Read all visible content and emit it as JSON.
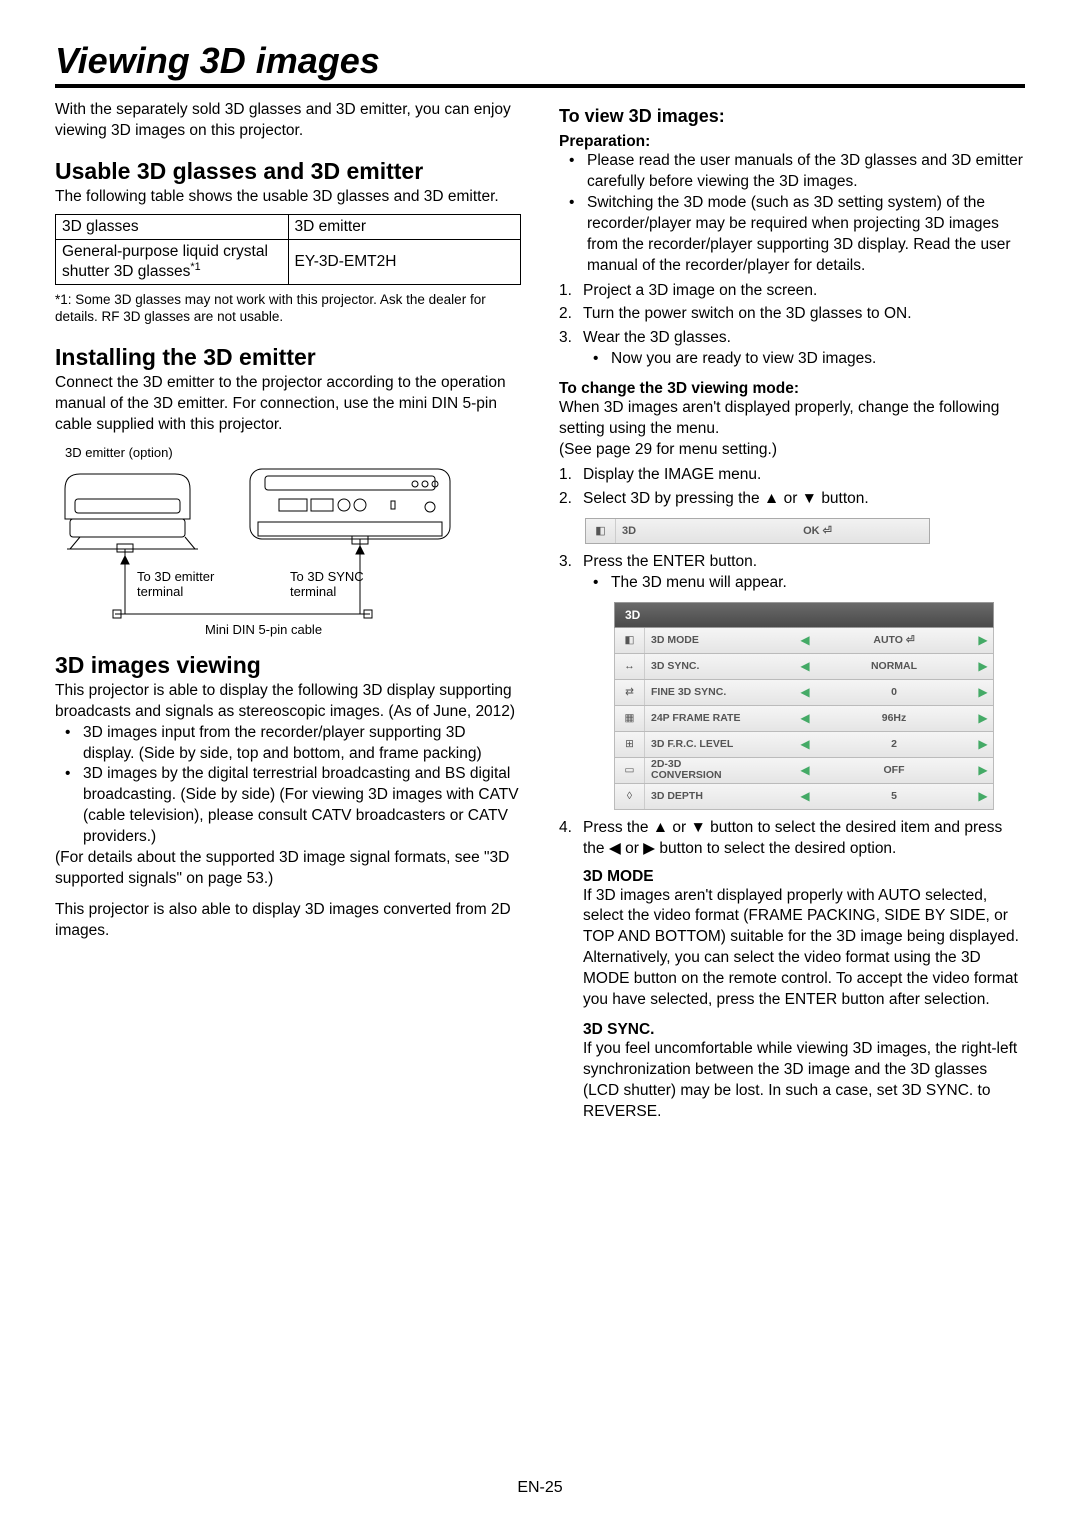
{
  "pageTitle": "Viewing 3D images",
  "intro": "With the separately sold 3D glasses and 3D emitter, you can enjoy viewing 3D images on this projector.",
  "left": {
    "usable": {
      "heading": "Usable 3D glasses and 3D emitter",
      "desc": "The following table shows the usable 3D glasses and 3D emitter.",
      "table": {
        "h1": "3D glasses",
        "h2": "3D emitter",
        "c1a": "General-purpose liquid crystal shutter 3D glasses",
        "c1sup": "*1",
        "c2": "EY-3D-EMT2H"
      },
      "footnote": "*1: Some 3D glasses may not work with this projector. Ask the dealer for details. RF 3D glasses are not usable."
    },
    "install": {
      "heading": "Installing the 3D emitter",
      "desc": "Connect the 3D emitter to the projector according to the operation manual of the 3D emitter. For connection, use the mini DIN 5-pin cable supplied with this projector.",
      "emitterLabel": "3D emitter (option)",
      "to3dEmitter": "To 3D emitter terminal",
      "to3dSync": "To 3D SYNC terminal",
      "cableLabel": "Mini DIN 5-pin cable"
    },
    "viewing": {
      "heading": "3D images viewing",
      "p1": "This projector is able to display the following 3D display supporting broadcasts and signals as stereoscopic images. (As of June, 2012)",
      "b1": "3D images input from the recorder/player supporting 3D display. (Side by side, top and bottom, and frame packing)",
      "b2": "3D images by the digital terrestrial broadcasting and BS digital broadcasting. (Side by side) (For viewing 3D images with CATV (cable television), please consult CATV broadcasters or CATV providers.)",
      "p2": "(For details about the supported 3D image signal formats, see \"3D supported signals\" on page 53.)",
      "p3": "This projector is also able to display 3D images converted from 2D images."
    }
  },
  "right": {
    "toView": {
      "heading": "To view 3D images:",
      "prep": "Preparation:",
      "pb1": "Please read the user manuals of the 3D glasses and 3D emitter carefully before viewing the 3D images.",
      "pb2": "Switching the 3D mode (such as 3D setting system) of the recorder/player may be required when projecting 3D images from the recorder/player supporting 3D display. Read the user manual of the recorder/player for details.",
      "s1": "Project a 3D image on the screen.",
      "s2": "Turn the power switch on the 3D glasses to ON.",
      "s3": "Wear the 3D glasses.",
      "s3b": "Now you are ready to view 3D images."
    },
    "change": {
      "heading": "To change the 3D viewing mode:",
      "p1": "When 3D images aren't displayed properly, change the following setting using the menu.",
      "p2": "(See page 29 for menu setting.)",
      "s1": "Display the IMAGE menu.",
      "s2": "Select 3D by pressing the ▲ or ▼ button.",
      "menuBar": {
        "label": "3D",
        "value": "OK ⏎"
      },
      "s3": "Press the ENTER button.",
      "s3b": "The 3D menu will appear.",
      "menu3d": {
        "title": "3D",
        "rows": [
          {
            "label": "3D MODE",
            "value": "AUTO ⏎"
          },
          {
            "label": "3D SYNC.",
            "value": "NORMAL"
          },
          {
            "label": "FINE 3D SYNC.",
            "value": "0"
          },
          {
            "label": "24P FRAME RATE",
            "value": "96Hz"
          },
          {
            "label": "3D F.R.C. LEVEL",
            "value": "2"
          },
          {
            "label": "2D-3D CONVERSION",
            "value": "OFF"
          },
          {
            "label": "3D DEPTH",
            "value": "5"
          }
        ]
      },
      "s4": "Press the ▲ or ▼ button to select the desired item and press the ◀ or ▶ button to select the desired option.",
      "mode": {
        "heading": "3D MODE",
        "text": "If 3D images aren't displayed properly with AUTO selected, select the video format (FRAME PACKING, SIDE BY SIDE, or TOP AND BOTTOM) suitable for the 3D image being displayed. Alternatively, you can select the video format using the 3D MODE button on the remote control. To accept the video format you have selected, press the ENTER button after selection."
      },
      "sync": {
        "heading": "3D SYNC.",
        "text": "If you feel uncomfortable while viewing 3D images, the right-left synchronization between the 3D image and the 3D glasses (LCD shutter) may be lost. In such a case, set 3D SYNC. to REVERSE."
      }
    }
  },
  "pageNum": "EN-25"
}
